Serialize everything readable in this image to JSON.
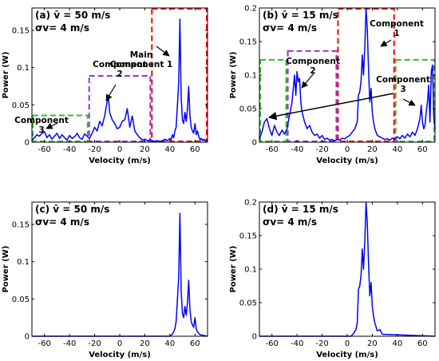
{
  "chart_data": [
    {
      "type": "line",
      "panel": "a",
      "title_lines": [
        "(a) v̄ = 50 m/s",
        "σv= 4 m/s"
      ],
      "xlabel": "Velocity (m/s)",
      "ylabel": "Power (W)",
      "xlim": [
        -70,
        70
      ],
      "ylim": [
        0,
        0.18
      ],
      "xticks": [
        -60,
        -40,
        -20,
        0,
        20,
        40,
        60
      ],
      "yticks": [
        0,
        0.05,
        0.1,
        0.15
      ],
      "ytick_labels": [
        "0",
        "0.05",
        "0.1",
        "0.15"
      ],
      "series": [
        {
          "color": "#0000ff",
          "x": [
            -70,
            -68,
            -66,
            -64,
            -62,
            -60,
            -58,
            -56,
            -54,
            -52,
            -50,
            -48,
            -46,
            -44,
            -42,
            -40,
            -38,
            -36,
            -34,
            -32,
            -30,
            -28,
            -26,
            -24,
            -22,
            -20,
            -18,
            -16,
            -14,
            -12,
            -10,
            -9,
            -8,
            -6,
            -4,
            -2,
            0,
            2,
            4,
            6,
            8,
            10,
            12,
            14,
            16,
            18,
            20,
            22,
            24,
            26,
            28,
            30,
            32,
            34,
            36,
            38,
            40,
            41,
            42,
            43,
            44,
            45,
            46,
            47,
            48,
            49,
            50,
            51,
            52,
            53,
            54,
            55,
            56,
            57,
            58,
            59,
            60,
            61,
            62,
            63,
            64,
            65,
            66,
            67,
            68,
            69,
            70
          ],
          "y": [
            0.003,
            0.006,
            0.01,
            0.008,
            0.012,
            0.014,
            0.006,
            0.01,
            0.004,
            0.008,
            0.012,
            0.005,
            0.01,
            0.006,
            0.003,
            0.009,
            0.005,
            0.007,
            0.012,
            0.006,
            0.004,
            0.011,
            0.008,
            0.005,
            0.012,
            0.02,
            0.015,
            0.028,
            0.022,
            0.035,
            0.055,
            0.06,
            0.04,
            0.03,
            0.025,
            0.018,
            0.02,
            0.028,
            0.03,
            0.045,
            0.02,
            0.035,
            0.015,
            0.01,
            0.006,
            0.003,
            0.004,
            0.002,
            0.003,
            0.002,
            0.001,
            0.002,
            0.001,
            0.002,
            0.004,
            0.002,
            0.005,
            0.003,
            0.01,
            0.006,
            0.015,
            0.02,
            0.05,
            0.08,
            0.165,
            0.06,
            0.03,
            0.025,
            0.04,
            0.028,
            0.045,
            0.075,
            0.035,
            0.02,
            0.015,
            0.012,
            0.025,
            0.01,
            0.015,
            0.008,
            0.003,
            0.005,
            0.002,
            0.004,
            0.003,
            0.002,
            0.001
          ]
        }
      ],
      "annotations": [
        {
          "lines": [
            "Main",
            "Component 1"
          ],
          "color": "#000000"
        },
        {
          "lines": [
            "Component",
            "2"
          ],
          "color": "#000000"
        },
        {
          "lines": [
            "Component",
            "3"
          ],
          "color": "#000000"
        }
      ],
      "boxes": [
        {
          "x": [
            25,
            70
          ],
          "y": [
            0,
            0.18
          ],
          "color": "#ff0000"
        },
        {
          "x": [
            -25,
            25
          ],
          "y": [
            0,
            0.09
          ],
          "color": "#9933cc"
        },
        {
          "x": [
            -70,
            -25
          ],
          "y": [
            0,
            0.037
          ],
          "color": "#33bb33"
        }
      ]
    },
    {
      "type": "line",
      "panel": "b",
      "title_lines": [
        "(b) v̄ = 15 m/s",
        "σv= 4 m/s"
      ],
      "xlabel": "Velocity (m/s)",
      "ylabel": "Power (W)",
      "xlim": [
        -70,
        70
      ],
      "ylim": [
        0,
        0.2
      ],
      "xticks": [
        -60,
        -40,
        -20,
        0,
        20,
        40,
        60
      ],
      "yticks": [
        0,
        0.05,
        0.1,
        0.15,
        0.2
      ],
      "ytick_labels": [
        "0",
        "0.05",
        "0.1",
        "0.15",
        "0.2"
      ],
      "series": [
        {
          "color": "#0000ff",
          "x": [
            -70,
            -68,
            -66,
            -64,
            -62,
            -60,
            -58,
            -56,
            -54,
            -52,
            -50,
            -48,
            -46,
            -44,
            -43,
            -42,
            -41,
            -40,
            -39,
            -38,
            -37,
            -36,
            -34,
            -32,
            -30,
            -28,
            -26,
            -24,
            -22,
            -20,
            -18,
            -16,
            -14,
            -12,
            -10,
            -8,
            -6,
            -4,
            -2,
            0,
            2,
            4,
            6,
            8,
            9,
            10,
            11,
            12,
            13,
            14,
            15,
            16,
            17,
            18,
            19,
            20,
            21,
            22,
            24,
            26,
            28,
            30,
            32,
            34,
            36,
            38,
            40,
            42,
            44,
            46,
            48,
            50,
            52,
            54,
            56,
            58,
            59,
            60,
            61,
            62,
            63,
            64,
            65,
            66,
            67,
            68,
            69,
            70
          ],
          "y": [
            0.005,
            0.015,
            0.03,
            0.035,
            0.02,
            0.01,
            0.025,
            0.015,
            0.01,
            0.018,
            0.012,
            0.02,
            0.04,
            0.06,
            0.08,
            0.1,
            0.07,
            0.105,
            0.09,
            0.095,
            0.06,
            0.045,
            0.03,
            0.02,
            0.025,
            0.015,
            0.01,
            0.012,
            0.006,
            0.01,
            0.004,
            0.006,
            0.003,
            0.004,
            0.002,
            0.004,
            0.003,
            0.006,
            0.005,
            0.008,
            0.01,
            0.015,
            0.02,
            0.03,
            0.07,
            0.075,
            0.09,
            0.13,
            0.1,
            0.14,
            0.2,
            0.17,
            0.11,
            0.06,
            0.08,
            0.045,
            0.03,
            0.02,
            0.01,
            0.008,
            0.006,
            0.004,
            0.005,
            0.003,
            0.006,
            0.004,
            0.008,
            0.005,
            0.01,
            0.006,
            0.012,
            0.008,
            0.015,
            0.01,
            0.02,
            0.035,
            0.055,
            0.03,
            0.02,
            0.025,
            0.045,
            0.06,
            0.085,
            0.03,
            0.105,
            0.115,
            0.04,
            0.02
          ]
        }
      ],
      "annotations": [
        {
          "lines": [
            "Component",
            "1"
          ],
          "color": "#000000"
        },
        {
          "lines": [
            "Component",
            "2"
          ],
          "color": "#000000"
        },
        {
          "lines": [
            "Component",
            "3"
          ],
          "color": "#000000"
        }
      ],
      "boxes": [
        {
          "x": [
            -8,
            38
          ],
          "y": [
            0,
            0.2
          ],
          "color": "#ff0000"
        },
        {
          "x": [
            -48,
            -8
          ],
          "y": [
            0,
            0.137
          ],
          "color": "#9933cc"
        },
        {
          "x": [
            -70,
            -48
          ],
          "y": [
            0,
            0.124
          ],
          "color": "#33bb33"
        },
        {
          "x": [
            38,
            70
          ],
          "y": [
            0,
            0.124
          ],
          "color": "#33bb33"
        }
      ]
    },
    {
      "type": "line",
      "panel": "c",
      "title_lines": [
        "(c) v̄ = 50 m/s",
        "σv= 4 m/s"
      ],
      "xlabel": "Velocity (m/s)",
      "ylabel": "Power (W)",
      "xlim": [
        -70,
        70
      ],
      "ylim": [
        0,
        0.18
      ],
      "xticks": [
        -60,
        -40,
        -20,
        0,
        20,
        40,
        60
      ],
      "yticks": [
        0,
        0.05,
        0.1,
        0.15
      ],
      "ytick_labels": [
        "0",
        "0.05",
        "0.1",
        "0.15"
      ],
      "series": [
        {
          "color": "#0000ff",
          "x": [
            -70,
            40,
            42,
            43,
            44,
            45,
            46,
            47,
            48,
            49,
            50,
            51,
            52,
            53,
            54,
            55,
            56,
            57,
            58,
            59,
            60,
            61,
            62,
            64,
            70
          ],
          "y": [
            0,
            0,
            0.003,
            0.006,
            0.01,
            0.02,
            0.05,
            0.08,
            0.165,
            0.06,
            0.03,
            0.025,
            0.04,
            0.028,
            0.045,
            0.075,
            0.035,
            0.02,
            0.015,
            0.012,
            0.025,
            0.01,
            0.006,
            0.002,
            0
          ]
        }
      ]
    },
    {
      "type": "line",
      "panel": "d",
      "title_lines": [
        "(d) v̄ = 15 m/s",
        "σv= 4 m/s"
      ],
      "xlabel": "Velocity (m/s)",
      "ylabel": "Power (W)",
      "xlim": [
        -70,
        70
      ],
      "ylim": [
        0,
        0.2
      ],
      "xticks": [
        -60,
        -40,
        -20,
        0,
        20,
        40,
        60
      ],
      "yticks": [
        0,
        0.05,
        0.1,
        0.15,
        0.2
      ],
      "ytick_labels": [
        "0",
        "0.05",
        "0.1",
        "0.15",
        "0.2"
      ],
      "series": [
        {
          "color": "#0000ff",
          "x": [
            -70,
            3,
            5,
            7,
            8,
            9,
            10,
            11,
            12,
            13,
            14,
            15,
            16,
            17,
            18,
            19,
            20,
            21,
            22,
            24,
            26,
            28,
            70
          ],
          "y": [
            0,
            0,
            0.004,
            0.01,
            0.02,
            0.07,
            0.075,
            0.09,
            0.13,
            0.1,
            0.14,
            0.2,
            0.17,
            0.11,
            0.06,
            0.08,
            0.045,
            0.03,
            0.02,
            0.008,
            0.01,
            0.003,
            0
          ]
        }
      ]
    }
  ]
}
